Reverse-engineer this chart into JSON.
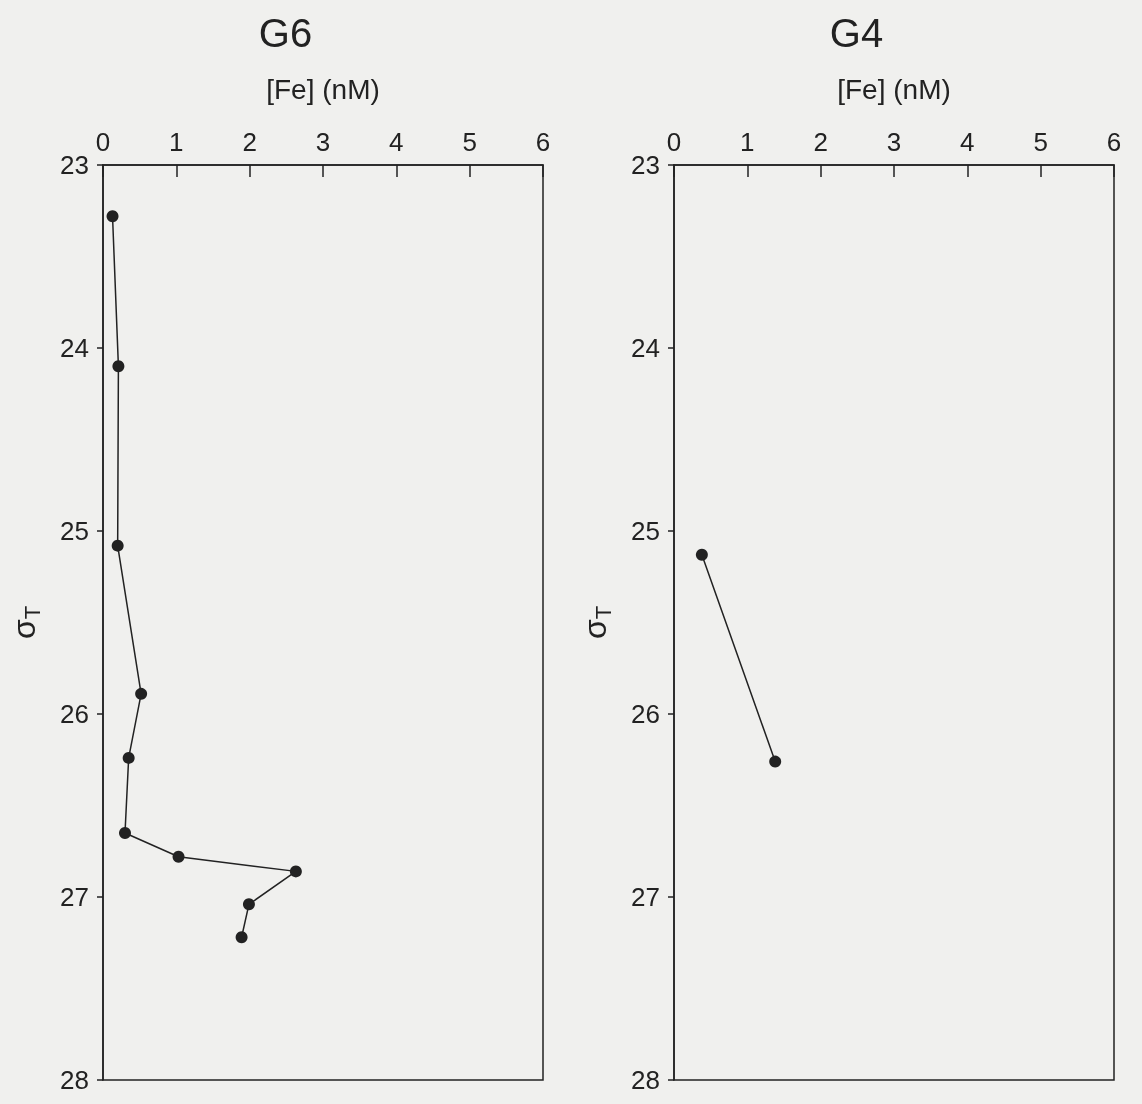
{
  "chart_data": [
    {
      "type": "line",
      "title": "G6",
      "xlabel": "[Fe] (nM)",
      "ylabel": "σ$_{T}$",
      "xlim": [
        0,
        6
      ],
      "xticks": [
        0,
        1,
        2,
        3,
        4,
        5,
        6
      ],
      "ylim": [
        28,
        23
      ],
      "yticks": [
        23,
        24,
        25,
        26,
        27,
        28
      ],
      "marker": "circle",
      "line_style": "solid",
      "series": [
        {
          "color": "#222222",
          "x": [
            0.13,
            0.21,
            0.2,
            0.52,
            0.35,
            0.3,
            1.03,
            2.63,
            1.99,
            1.89
          ],
          "values": [
            23.28,
            24.1,
            25.08,
            25.89,
            26.24,
            26.65,
            26.78,
            26.86,
            27.04,
            27.22
          ]
        }
      ]
    },
    {
      "type": "line",
      "title": "G4",
      "xlabel": "[Fe] (nM)",
      "ylabel": "σ$_{T}$",
      "xlim": [
        0,
        6
      ],
      "xticks": [
        0,
        1,
        2,
        3,
        4,
        5,
        6
      ],
      "ylim": [
        28,
        23
      ],
      "yticks": [
        23,
        24,
        25,
        26,
        27,
        28
      ],
      "marker": "circle",
      "line_style": "solid",
      "series": [
        {
          "color": "#222222",
          "x": [
            0.38,
            1.38
          ],
          "values": [
            25.13,
            26.26
          ]
        }
      ]
    }
  ]
}
